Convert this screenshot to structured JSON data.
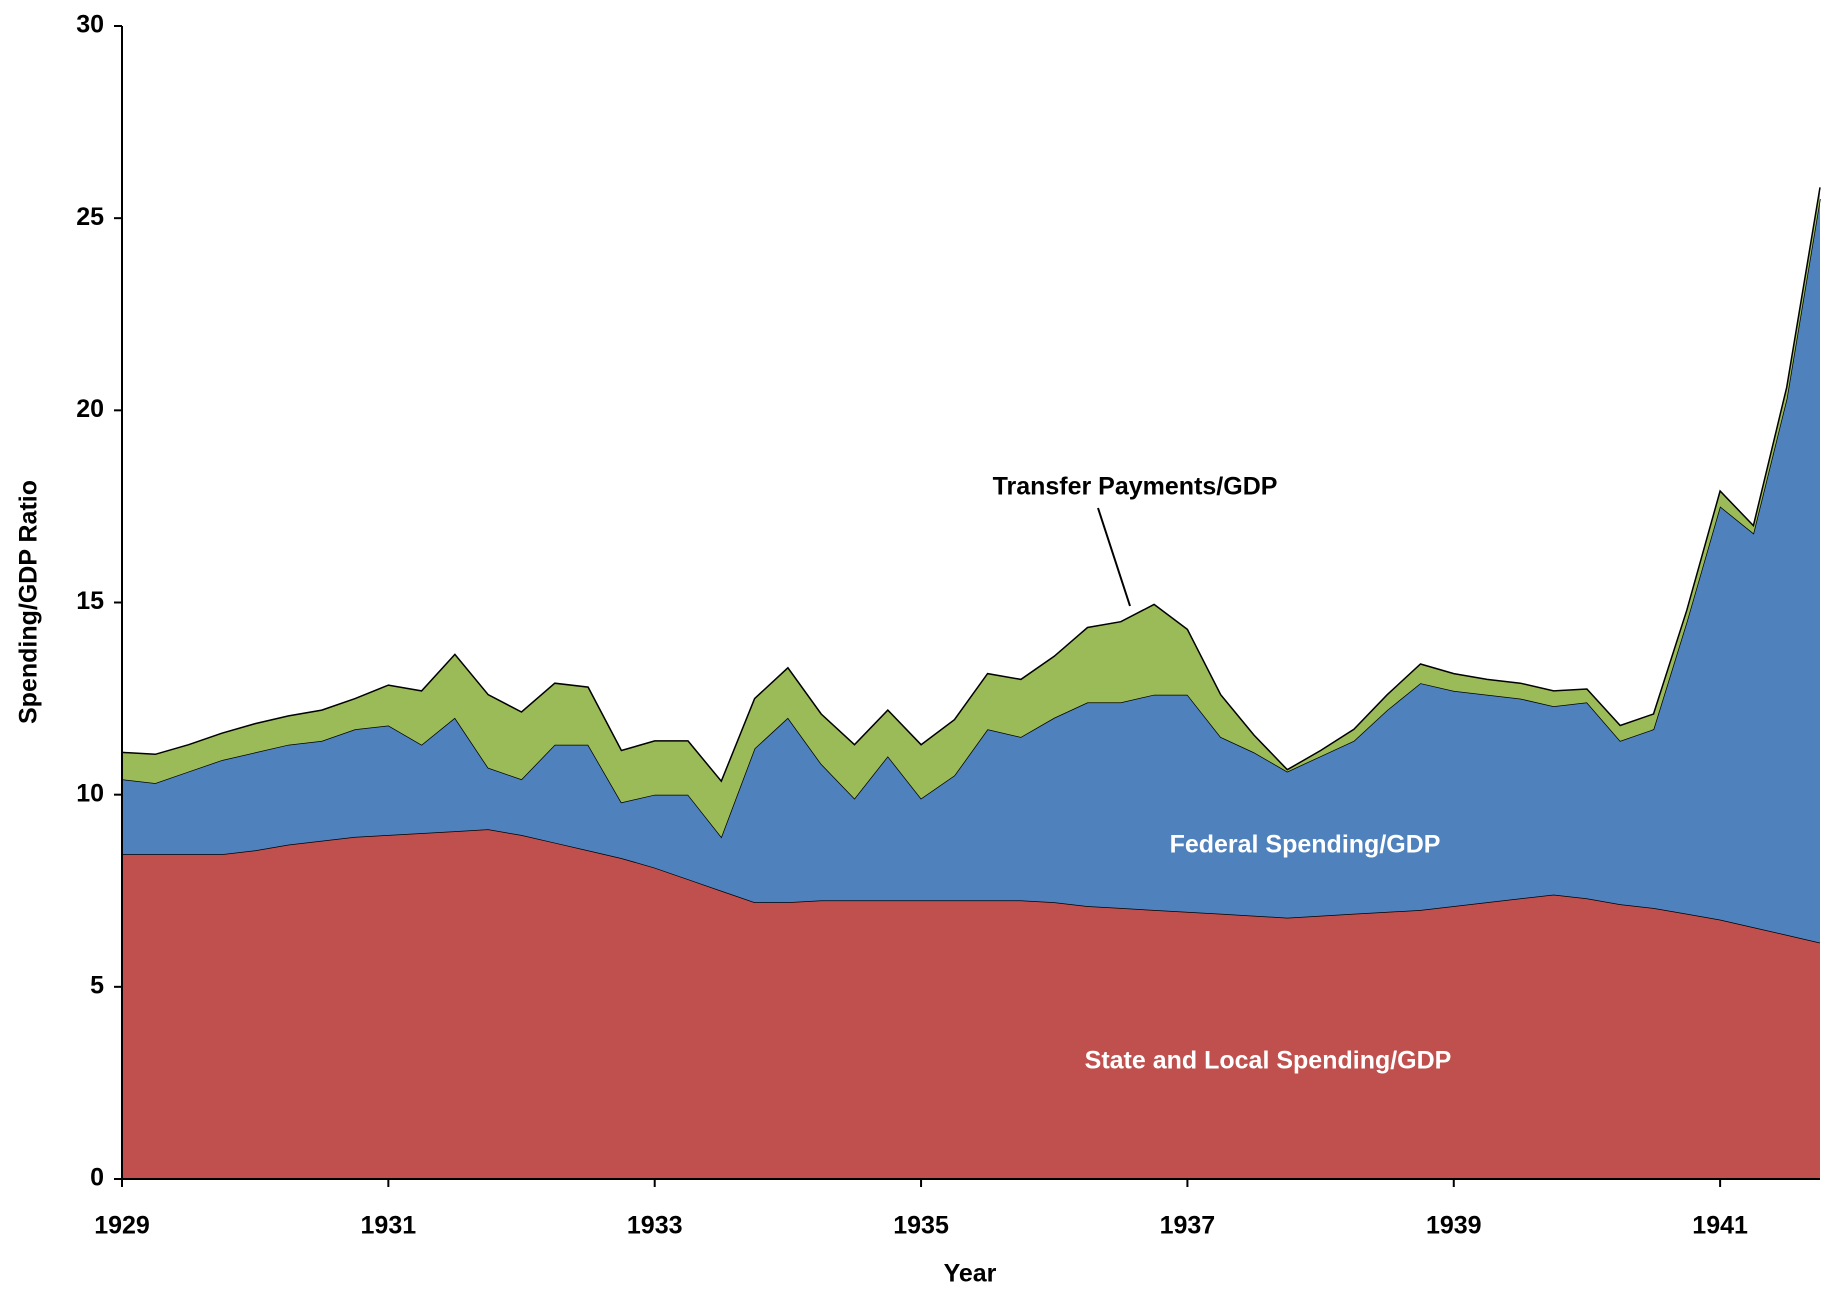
{
  "chart_data": {
    "type": "stacked_area",
    "x_label": "Year",
    "y_label": "Spending/GDP Ratio",
    "x": [
      1929,
      1929.25,
      1929.5,
      1929.75,
      1930,
      1930.25,
      1930.5,
      1930.75,
      1931,
      1931.25,
      1931.5,
      1931.75,
      1932,
      1932.25,
      1932.5,
      1932.75,
      1933,
      1933.25,
      1933.5,
      1933.75,
      1934,
      1934.25,
      1934.5,
      1934.75,
      1935,
      1935.25,
      1935.5,
      1935.75,
      1936,
      1936.25,
      1936.5,
      1936.75,
      1937,
      1937.25,
      1937.5,
      1937.75,
      1938,
      1938.25,
      1938.5,
      1938.75,
      1939,
      1939.25,
      1939.5,
      1939.75,
      1940,
      1940.25,
      1940.5,
      1940.75,
      1941,
      1941.25,
      1941.5,
      1941.75
    ],
    "series": [
      {
        "name": "State and Local Spending/GDP",
        "color": "#c0504d",
        "label_color": "#ffffff",
        "values": [
          8.45,
          8.45,
          8.45,
          8.45,
          8.55,
          8.7,
          8.8,
          8.9,
          8.95,
          9.0,
          9.05,
          9.1,
          8.95,
          8.75,
          8.55,
          8.35,
          8.1,
          7.8,
          7.5,
          7.2,
          7.2,
          7.25,
          7.25,
          7.25,
          7.25,
          7.25,
          7.25,
          7.25,
          7.2,
          7.1,
          7.05,
          7.0,
          6.95,
          6.9,
          6.85,
          6.8,
          6.85,
          6.9,
          6.95,
          7.0,
          7.1,
          7.2,
          7.3,
          7.4,
          7.3,
          7.15,
          7.05,
          6.9,
          6.75,
          6.55,
          6.35,
          6.15
        ]
      },
      {
        "name": "Federal Spending/GDP",
        "color": "#4f81bd",
        "label_color": "#ffffff",
        "values": [
          1.95,
          1.85,
          2.15,
          2.45,
          2.55,
          2.6,
          2.6,
          2.8,
          2.85,
          2.3,
          2.95,
          1.6,
          1.45,
          2.55,
          2.75,
          1.45,
          1.9,
          2.2,
          1.4,
          4.0,
          4.8,
          3.55,
          2.65,
          3.75,
          2.65,
          3.25,
          4.45,
          4.25,
          4.8,
          5.3,
          5.35,
          5.6,
          5.65,
          4.6,
          4.25,
          3.8,
          4.15,
          4.5,
          5.25,
          5.9,
          5.6,
          5.4,
          5.2,
          4.9,
          5.1,
          4.25,
          4.65,
          7.6,
          10.75,
          10.25,
          13.95,
          19.35
        ]
      },
      {
        "name": "Transfer Payments/GDP",
        "color": "#9bbb59",
        "label_color": "#000000",
        "values": [
          0.7,
          0.75,
          0.7,
          0.7,
          0.75,
          0.75,
          0.8,
          0.8,
          1.05,
          1.4,
          1.65,
          1.9,
          1.75,
          1.6,
          1.5,
          1.35,
          1.4,
          1.4,
          1.45,
          1.3,
          1.3,
          1.3,
          1.4,
          1.2,
          1.4,
          1.45,
          1.45,
          1.5,
          1.6,
          1.95,
          2.1,
          2.35,
          1.7,
          1.1,
          0.45,
          0.05,
          0.15,
          0.3,
          0.4,
          0.5,
          0.45,
          0.4,
          0.4,
          0.4,
          0.35,
          0.4,
          0.4,
          0.3,
          0.4,
          0.2,
          0.3,
          0.3
        ]
      }
    ],
    "xlim": [
      1929,
      1941.75
    ],
    "xticks": [
      1929,
      1931,
      1933,
      1935,
      1937,
      1939,
      1941
    ],
    "ylim": [
      0,
      30
    ],
    "yticks": [
      0,
      5,
      10,
      15,
      20,
      25,
      30
    ],
    "grid": false
  }
}
